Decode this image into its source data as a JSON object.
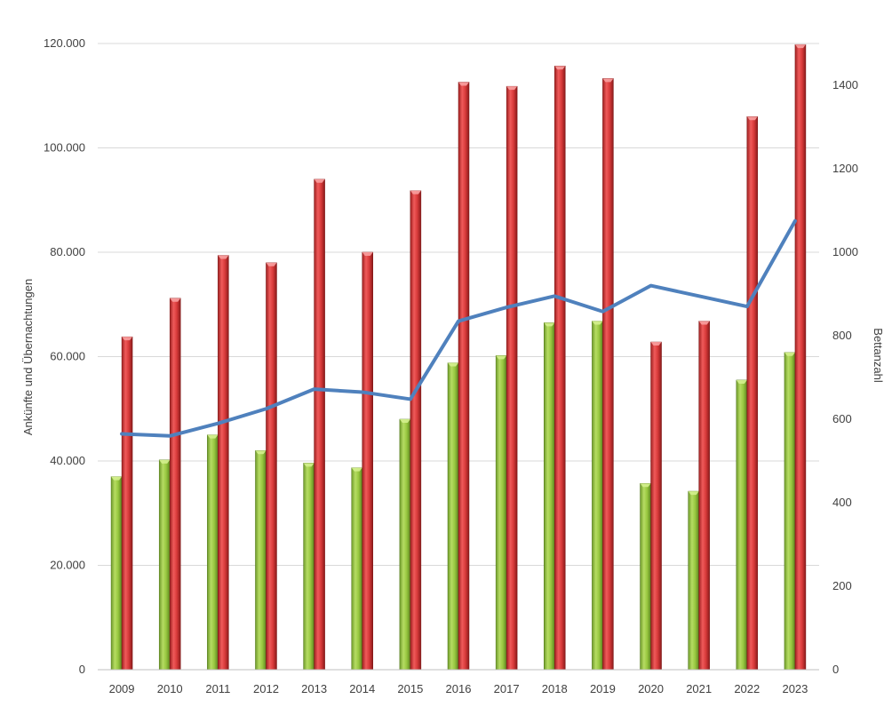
{
  "chart_data": {
    "type": "bar",
    "categories": [
      "2009",
      "2010",
      "2011",
      "2012",
      "2013",
      "2014",
      "2015",
      "2016",
      "2017",
      "2018",
      "2019",
      "2020",
      "2021",
      "2022",
      "2023"
    ],
    "series": [
      {
        "kind": "bar",
        "axis": "left",
        "color": "#8cbf3a",
        "values": [
          37000,
          40200,
          45000,
          42000,
          39600,
          38700,
          48000,
          58800,
          60200,
          66500,
          66800,
          35700,
          34200,
          55500,
          60800
        ]
      },
      {
        "kind": "bar",
        "axis": "left",
        "color": "#d83a3a",
        "values": [
          63800,
          71200,
          79400,
          78000,
          94000,
          80000,
          91800,
          112600,
          111800,
          115700,
          113300,
          62800,
          66800,
          106000,
          119800
        ]
      },
      {
        "kind": "line",
        "axis": "right",
        "color": "#4f81bd",
        "values": [
          565,
          560,
          590,
          625,
          672,
          665,
          648,
          835,
          868,
          895,
          858,
          920,
          895,
          870,
          1075
        ]
      }
    ],
    "ylabel": "Ankünfte und Übernachtungen",
    "y2label": "Bettanzahl",
    "ylim": [
      0,
      120000
    ],
    "y2lim": [
      0,
      1500
    ],
    "yticks": [
      "0",
      "20.000",
      "40.000",
      "60.000",
      "80.000",
      "100.000",
      "120.000"
    ],
    "y2ticks": [
      "0",
      "200",
      "400",
      "600",
      "800",
      "1000",
      "1200",
      "1400"
    ],
    "grid": true
  }
}
